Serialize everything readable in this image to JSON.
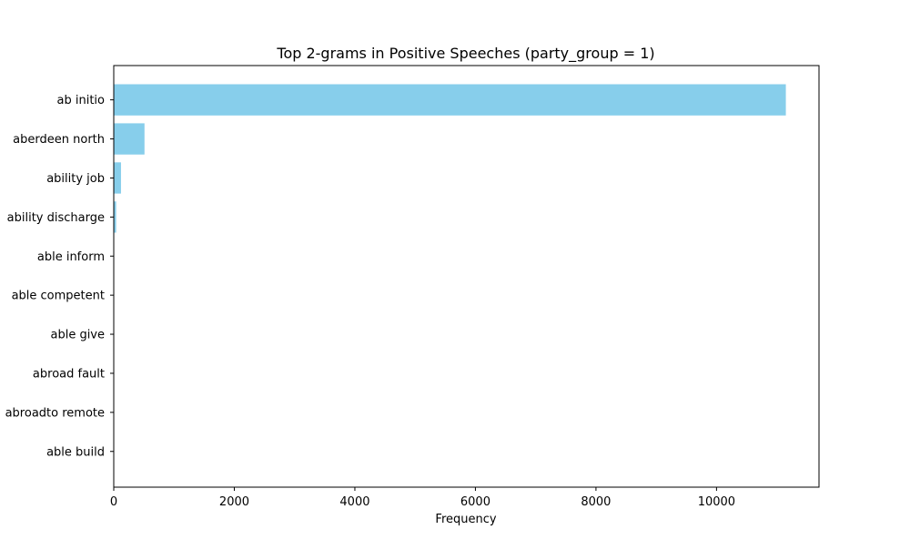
{
  "chart_data": {
    "type": "bar",
    "orientation": "horizontal",
    "title": "Top 2-grams in Positive Speeches (party_group = 1)",
    "xlabel": "Frequency",
    "ylabel": "",
    "categories": [
      "ab initio",
      "aberdeen north",
      "ability job",
      "ability discharge",
      "able inform",
      "able competent",
      "able give",
      "abroad fault",
      "abroadto remote",
      "able build"
    ],
    "values": [
      11150,
      510,
      120,
      40,
      5,
      4,
      3,
      3,
      2,
      2
    ],
    "xlim": [
      0,
      11700
    ],
    "xticks": [
      0,
      2000,
      4000,
      6000,
      8000,
      10000
    ],
    "xtick_labels": [
      "0",
      "2000",
      "4000",
      "6000",
      "8000",
      "10000"
    ],
    "bar_color": "#87CEEB",
    "grid": false,
    "legend": "none"
  }
}
